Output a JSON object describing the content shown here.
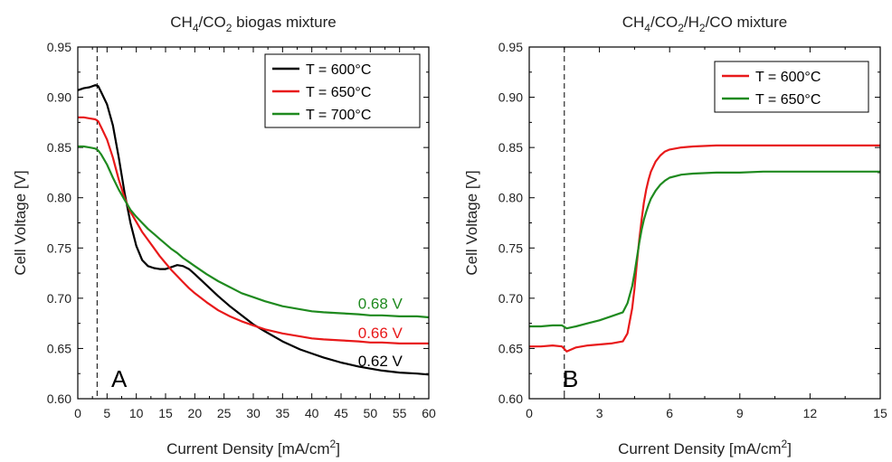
{
  "chart_data": [
    {
      "type": "line",
      "title": "CH4/CO2 biogas mixture",
      "title_parts": [
        "CH",
        "4",
        "/CO",
        "2",
        " biogas mixture"
      ],
      "xlabel": "Current Density [mA/cm2]",
      "xlabel_main": "Current Density [mA/cm",
      "xlabel_sup": "2",
      "xlabel_end": "]",
      "ylabel": "Cell Voltage [V]",
      "xlim": [
        0,
        60
      ],
      "ylim": [
        0.6,
        0.95
      ],
      "xticks": [
        "0",
        "5",
        "10",
        "15",
        "20",
        "25",
        "30",
        "35",
        "40",
        "45",
        "50",
        "55",
        "60"
      ],
      "yticks": [
        "0.60",
        "0.65",
        "0.70",
        "0.75",
        "0.80",
        "0.85",
        "0.90",
        "0.95"
      ],
      "vline_x": 3.3,
      "panel_label": "A",
      "legend_position": "top-right",
      "series": [
        {
          "name": "T = 600°C",
          "color": "#000000",
          "x": [
            0,
            1,
            2,
            3,
            3.5,
            4,
            5,
            6,
            7,
            8,
            9,
            10,
            11,
            12,
            13,
            14,
            15,
            16,
            17,
            18,
            19,
            20,
            22,
            24,
            26,
            28,
            30,
            32,
            35,
            38,
            40,
            42,
            45,
            48,
            50,
            52,
            55,
            58,
            60
          ],
          "y": [
            0.907,
            0.909,
            0.91,
            0.912,
            0.911,
            0.905,
            0.893,
            0.872,
            0.84,
            0.805,
            0.775,
            0.752,
            0.738,
            0.732,
            0.73,
            0.729,
            0.729,
            0.731,
            0.733,
            0.732,
            0.729,
            0.724,
            0.713,
            0.702,
            0.692,
            0.683,
            0.674,
            0.667,
            0.657,
            0.649,
            0.645,
            0.641,
            0.636,
            0.632,
            0.63,
            0.628,
            0.626,
            0.625,
            0.624
          ]
        },
        {
          "name": "T = 650°C",
          "color": "#e8191a",
          "x": [
            0,
            1,
            2,
            3,
            3.5,
            4,
            5,
            6,
            7,
            8,
            9,
            10,
            11,
            12,
            13,
            14,
            15,
            16,
            17,
            18,
            19,
            20,
            22,
            24,
            26,
            28,
            30,
            32,
            35,
            38,
            40,
            42,
            45,
            48,
            50,
            52,
            55,
            58,
            60
          ],
          "y": [
            0.88,
            0.88,
            0.879,
            0.878,
            0.876,
            0.87,
            0.858,
            0.84,
            0.818,
            0.8,
            0.786,
            0.776,
            0.766,
            0.758,
            0.75,
            0.742,
            0.735,
            0.728,
            0.722,
            0.716,
            0.71,
            0.705,
            0.696,
            0.688,
            0.682,
            0.677,
            0.673,
            0.669,
            0.665,
            0.662,
            0.66,
            0.659,
            0.658,
            0.657,
            0.656,
            0.656,
            0.655,
            0.655,
            0.655
          ]
        },
        {
          "name": "T = 700°C",
          "color": "#1f8a1f",
          "x": [
            0,
            1,
            2,
            3,
            3.5,
            4,
            5,
            6,
            7,
            8,
            9,
            10,
            11,
            12,
            13,
            14,
            15,
            16,
            17,
            18,
            19,
            20,
            22,
            24,
            26,
            28,
            30,
            32,
            35,
            38,
            40,
            42,
            45,
            48,
            50,
            52,
            55,
            58,
            60
          ],
          "y": [
            0.851,
            0.851,
            0.85,
            0.849,
            0.847,
            0.843,
            0.833,
            0.82,
            0.808,
            0.798,
            0.788,
            0.781,
            0.775,
            0.769,
            0.764,
            0.759,
            0.754,
            0.749,
            0.745,
            0.74,
            0.736,
            0.732,
            0.724,
            0.717,
            0.711,
            0.705,
            0.701,
            0.697,
            0.692,
            0.689,
            0.687,
            0.686,
            0.685,
            0.684,
            0.683,
            0.683,
            0.682,
            0.682,
            0.681
          ]
        }
      ],
      "annotations": [
        {
          "text": "0.68 V",
          "color": "#1f8a1f",
          "x": 55.5,
          "y": 0.6895
        },
        {
          "text": "0.66 V",
          "color": "#e8191a",
          "x": 55.5,
          "y": 0.6605
        },
        {
          "text": "0.62 V",
          "color": "#000000",
          "x": 55.5,
          "y": 0.6325
        }
      ]
    },
    {
      "type": "line",
      "title": "CH4/CO2/H2/CO mixture",
      "title_parts": [
        "CH",
        "4",
        "/CO",
        "2",
        "/H",
        "2",
        "/CO mixture"
      ],
      "xlabel": "Current Density [mA/cm2]",
      "xlabel_main": "Current Density [mA/cm",
      "xlabel_sup": "2",
      "xlabel_end": "]",
      "ylabel": "Cell Voltage [V]",
      "xlim": [
        0,
        15
      ],
      "ylim": [
        0.6,
        0.95
      ],
      "xticks": [
        "0",
        "3",
        "6",
        "9",
        "12",
        "15"
      ],
      "yticks": [
        "0.60",
        "0.65",
        "0.70",
        "0.75",
        "0.80",
        "0.85",
        "0.90",
        "0.95"
      ],
      "vline_x": 1.5,
      "panel_label": "B",
      "legend_position": "top-left",
      "series": [
        {
          "name": "T = 600°C",
          "color": "#e8191a",
          "x": [
            0,
            0.5,
            1,
            1.4,
            1.6,
            2,
            2.5,
            3,
            3.5,
            4,
            4.2,
            4.4,
            4.5,
            4.6,
            4.7,
            4.8,
            4.9,
            5.0,
            5.1,
            5.2,
            5.4,
            5.6,
            5.8,
            6.0,
            6.5,
            7,
            8,
            9,
            10,
            11,
            12,
            13,
            14,
            15
          ],
          "y": [
            0.652,
            0.652,
            0.653,
            0.652,
            0.647,
            0.651,
            0.653,
            0.654,
            0.655,
            0.657,
            0.665,
            0.69,
            0.71,
            0.735,
            0.758,
            0.778,
            0.795,
            0.808,
            0.818,
            0.826,
            0.836,
            0.842,
            0.846,
            0.848,
            0.85,
            0.851,
            0.852,
            0.852,
            0.852,
            0.852,
            0.852,
            0.852,
            0.852,
            0.852
          ]
        },
        {
          "name": "T = 650°C",
          "color": "#1f8a1f",
          "x": [
            0,
            0.5,
            1,
            1.4,
            1.6,
            2,
            2.5,
            3,
            3.5,
            4,
            4.2,
            4.4,
            4.5,
            4.6,
            4.7,
            4.8,
            4.9,
            5.0,
            5.1,
            5.2,
            5.4,
            5.6,
            5.8,
            6.0,
            6.5,
            7,
            8,
            9,
            10,
            11,
            12,
            13,
            14,
            15
          ],
          "y": [
            0.672,
            0.672,
            0.673,
            0.673,
            0.67,
            0.672,
            0.675,
            0.678,
            0.682,
            0.686,
            0.695,
            0.712,
            0.725,
            0.74,
            0.755,
            0.768,
            0.778,
            0.786,
            0.793,
            0.799,
            0.807,
            0.813,
            0.817,
            0.82,
            0.823,
            0.824,
            0.825,
            0.825,
            0.826,
            0.826,
            0.826,
            0.826,
            0.826,
            0.826
          ]
        }
      ],
      "annotations": []
    }
  ]
}
